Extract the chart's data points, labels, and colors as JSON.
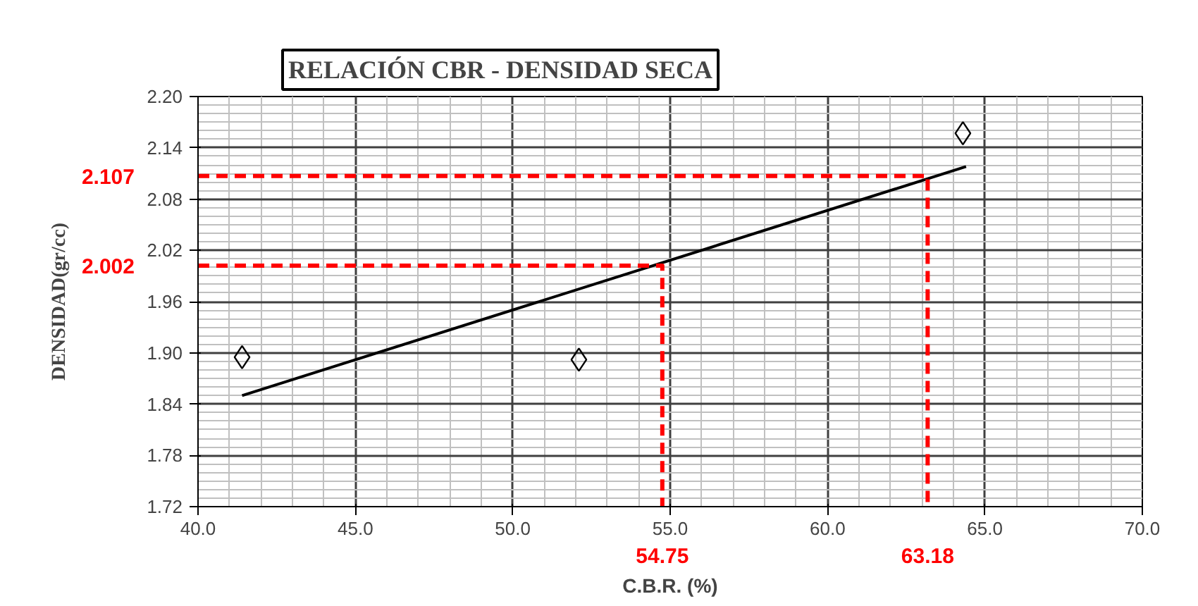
{
  "chart_data": {
    "type": "scatter",
    "title": "RELACIÓN CBR - DENSIDAD SECA",
    "xlabel": "C.B.R. (%)",
    "ylabel": "DENSIDAD(gr/cc)",
    "xlim": [
      40,
      70
    ],
    "xticks": [
      {
        "value": 40,
        "label": "40.0"
      },
      {
        "value": 45,
        "label": "45.0"
      },
      {
        "value": 50,
        "label": "50.0"
      },
      {
        "value": 55,
        "label": "55.0"
      },
      {
        "value": 60,
        "label": "60.0"
      },
      {
        "value": 65,
        "label": "65.0"
      },
      {
        "value": 70,
        "label": "70.0"
      }
    ],
    "ylim": [
      1.72,
      2.2
    ],
    "yticks": [
      {
        "value": 1.72,
        "label": "1.72"
      },
      {
        "value": 1.78,
        "label": "1.78"
      },
      {
        "value": 1.84,
        "label": "1.84"
      },
      {
        "value": 1.9,
        "label": "1.90"
      },
      {
        "value": 1.96,
        "label": "1.96"
      },
      {
        "value": 2.02,
        "label": "2.02"
      },
      {
        "value": 2.08,
        "label": "2.08"
      },
      {
        "value": 2.14,
        "label": "2.14"
      },
      {
        "value": 2.2,
        "label": "2.20"
      }
    ],
    "grid": true,
    "series": [
      {
        "marker": "diamond",
        "color": "#000000",
        "x": [
          41.4,
          52.1,
          64.3
        ],
        "values": [
          1.895,
          1.892,
          2.157
        ]
      },
      {
        "type": "line",
        "marker": "none",
        "line_style": "solid",
        "color": "#000000",
        "x": [
          41.4,
          64.4
        ],
        "values": [
          1.85,
          2.118
        ]
      },
      {
        "type": "line",
        "marker": "none",
        "line_style": "dashed",
        "color": "#ff0000",
        "x": [
          40,
          54.75,
          54.75
        ],
        "values": [
          2.002,
          2.002,
          1.72
        ]
      },
      {
        "type": "line",
        "marker": "none",
        "line_style": "dashed",
        "color": "#ff0000",
        "x": [
          40,
          63.18,
          63.18
        ],
        "values": [
          2.107,
          2.107,
          1.72
        ]
      }
    ],
    "annotations": [
      "2.002",
      "54.75",
      "2.107",
      "63.18"
    ]
  }
}
